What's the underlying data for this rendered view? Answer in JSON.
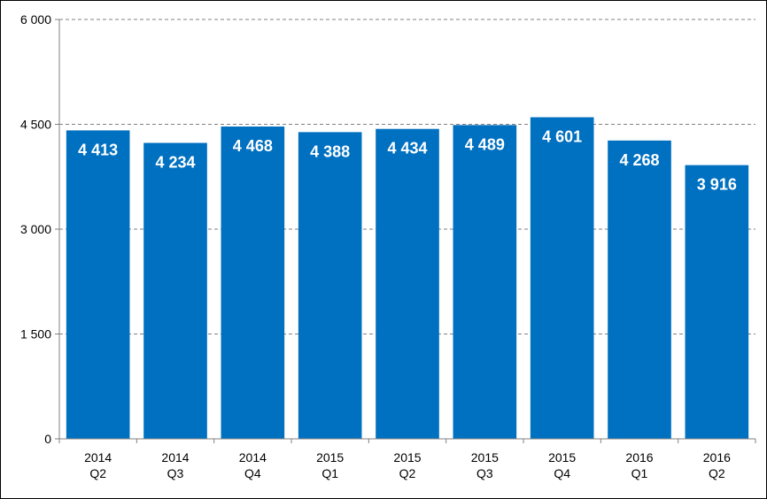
{
  "chart_data": {
    "type": "bar",
    "categories": [
      [
        "2014",
        "Q2"
      ],
      [
        "2014",
        "Q3"
      ],
      [
        "2014",
        "Q4"
      ],
      [
        "2015",
        "Q1"
      ],
      [
        "2015",
        "Q2"
      ],
      [
        "2015",
        "Q3"
      ],
      [
        "2015",
        "Q4"
      ],
      [
        "2016",
        "Q1"
      ],
      [
        "2016",
        "Q2"
      ]
    ],
    "values": [
      4413,
      4234,
      4468,
      4388,
      4434,
      4489,
      4601,
      4268,
      3916
    ],
    "value_labels": [
      "4 413",
      "4 234",
      "4 468",
      "4 388",
      "4 434",
      "4 489",
      "4 601",
      "4 268",
      "3 916"
    ],
    "yticks": [
      0,
      1500,
      3000,
      4500,
      6000
    ],
    "ytick_labels": [
      "0",
      "1 500",
      "3 000",
      "4 500",
      "6 000"
    ],
    "ylim": [
      0,
      6000
    ],
    "title": "",
    "xlabel": "",
    "ylabel": "",
    "grid": "horizontal dashed",
    "legend": "none",
    "bar_color": "#0070C0",
    "label_color": "#ffffff"
  }
}
